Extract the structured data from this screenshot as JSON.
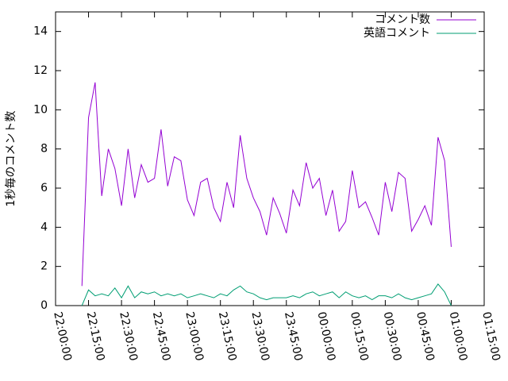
{
  "chart_data": {
    "type": "line",
    "y_label": "1秒毎のコメント数",
    "x": [
      "22:12:00",
      "22:15:00",
      "22:18:00",
      "22:21:00",
      "22:24:00",
      "22:27:00",
      "22:30:00",
      "22:33:00",
      "22:36:00",
      "22:39:00",
      "22:42:00",
      "22:45:00",
      "22:48:00",
      "22:51:00",
      "22:54:00",
      "22:57:00",
      "23:00:00",
      "23:03:00",
      "23:06:00",
      "23:09:00",
      "23:12:00",
      "23:15:00",
      "23:18:00",
      "23:21:00",
      "23:24:00",
      "23:27:00",
      "23:30:00",
      "23:33:00",
      "23:36:00",
      "23:39:00",
      "23:42:00",
      "23:45:00",
      "23:48:00",
      "23:51:00",
      "23:54:00",
      "23:57:00",
      "00:00:00",
      "00:03:00",
      "00:06:00",
      "00:09:00",
      "00:12:00",
      "00:15:00",
      "00:18:00",
      "00:21:00",
      "00:24:00",
      "00:27:00",
      "00:30:00",
      "00:33:00",
      "00:36:00",
      "00:39:00",
      "00:42:00",
      "00:45:00",
      "00:48:00",
      "00:51:00",
      "00:54:00",
      "00:57:00",
      "01:00:00"
    ],
    "series": [
      {
        "name": "コメント数",
        "color": "#9400d3",
        "values": [
          1.0,
          9.6,
          11.4,
          5.6,
          8.0,
          7.0,
          5.1,
          8.0,
          5.5,
          7.2,
          6.3,
          6.5,
          9.0,
          6.1,
          7.6,
          7.4,
          5.4,
          4.6,
          6.3,
          6.5,
          5.0,
          4.3,
          6.3,
          5.0,
          8.7,
          6.5,
          5.5,
          4.8,
          3.6,
          5.5,
          4.7,
          3.7,
          5.9,
          5.1,
          7.3,
          6.0,
          6.5,
          4.6,
          5.9,
          3.8,
          4.3,
          6.9,
          5.0,
          5.3,
          4.5,
          3.6,
          6.3,
          4.8,
          6.8,
          6.5,
          3.8,
          4.4,
          5.1,
          4.1,
          8.6,
          7.4,
          3.0
        ]
      },
      {
        "name": "英語コメント",
        "color": "#009e73",
        "values": [
          0.0,
          0.8,
          0.5,
          0.6,
          0.5,
          0.9,
          0.4,
          1.0,
          0.4,
          0.7,
          0.6,
          0.7,
          0.5,
          0.6,
          0.5,
          0.6,
          0.4,
          0.5,
          0.6,
          0.5,
          0.4,
          0.6,
          0.5,
          0.8,
          1.0,
          0.7,
          0.6,
          0.4,
          0.3,
          0.4,
          0.4,
          0.4,
          0.5,
          0.4,
          0.6,
          0.7,
          0.5,
          0.6,
          0.7,
          0.4,
          0.7,
          0.5,
          0.4,
          0.5,
          0.3,
          0.5,
          0.5,
          0.4,
          0.6,
          0.4,
          0.3,
          0.4,
          0.5,
          0.6,
          1.1,
          0.7,
          0.0
        ]
      }
    ],
    "xlim": [
      "22:00:00",
      "01:15:00"
    ],
    "xticks": [
      "22:00:00",
      "22:15:00",
      "22:30:00",
      "22:45:00",
      "23:00:00",
      "23:15:00",
      "23:30:00",
      "23:45:00",
      "00:00:00",
      "00:15:00",
      "00:30:00",
      "00:45:00",
      "01:00:00",
      "01:15:00"
    ],
    "ylim": [
      0,
      15
    ],
    "yticks": [
      0,
      2,
      4,
      6,
      8,
      10,
      12,
      14
    ],
    "legend": "top-right"
  }
}
